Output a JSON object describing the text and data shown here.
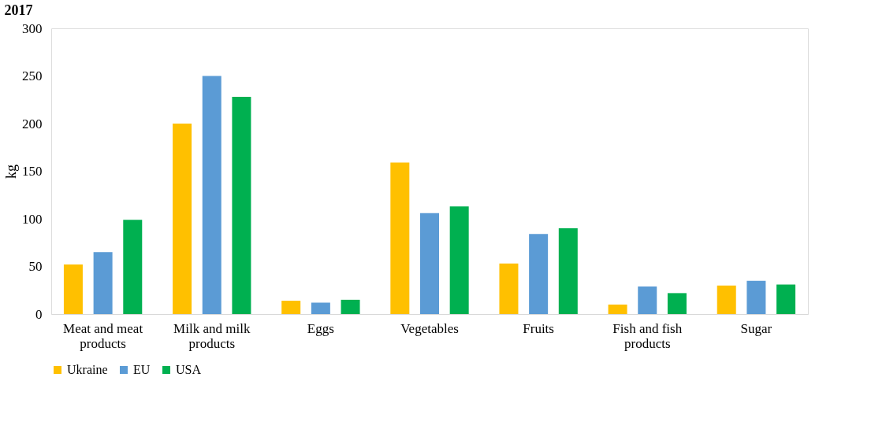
{
  "chart_data": {
    "type": "bar",
    "title": "2017",
    "ylabel": "kg",
    "categories": [
      "Meat and meat products",
      "Milk and milk products",
      "Eggs",
      "Vegetables",
      "Fruits",
      "Fish and fish products",
      "Sugar"
    ],
    "series": [
      {
        "name": "Ukraine",
        "color": "#ffc000",
        "values": [
          52,
          200,
          14,
          159,
          53,
          10,
          30
        ]
      },
      {
        "name": "EU",
        "color": "#5b9bd5",
        "values": [
          65,
          250,
          12,
          106,
          84,
          29,
          35
        ]
      },
      {
        "name": "USA",
        "color": "#00b050",
        "values": [
          99,
          228,
          15,
          113,
          90,
          22,
          31
        ]
      }
    ],
    "ylim": [
      0,
      300
    ],
    "yticks": [
      0,
      50,
      100,
      150,
      200,
      250,
      300
    ],
    "grid": false,
    "legend": "bottom"
  }
}
